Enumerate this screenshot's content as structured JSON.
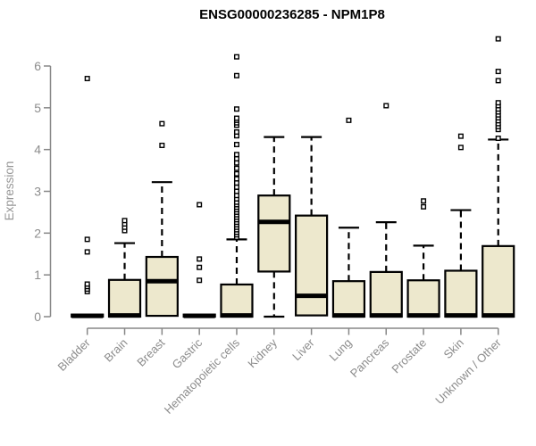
{
  "chart_data": {
    "type": "boxplot",
    "title": "ENSG00000236285 - NPM1P8",
    "ylabel": "Expression",
    "xlabel": "",
    "ylim": [
      0,
      6
    ],
    "yticks": [
      0,
      1,
      2,
      3,
      4,
      5,
      6
    ],
    "grid": false,
    "legend": "none",
    "categories": [
      "Bladder",
      "Brain",
      "Breast",
      "Gastric",
      "Hematopoietic cells",
      "Kidney",
      "Liver",
      "Lung",
      "Pancreas",
      "Prostate",
      "Skin",
      "Unknown / Other"
    ],
    "series": [
      {
        "name": "Bladder",
        "q1": 0,
        "median": 0.02,
        "q3": 0.05,
        "whisker_low": 0,
        "whisker_high": 0.05,
        "outliers": [
          0.6,
          0.66,
          0.72,
          0.78,
          1.55,
          1.85,
          5.7
        ]
      },
      {
        "name": "Brain",
        "q1": 0,
        "median": 0.03,
        "q3": 0.88,
        "whisker_low": 0,
        "whisker_high": 1.76,
        "outliers": [
          2.06,
          2.14,
          2.22,
          2.3
        ]
      },
      {
        "name": "Breast",
        "q1": 0.02,
        "median": 0.85,
        "q3": 1.43,
        "whisker_low": 0,
        "whisker_high": 3.22,
        "outliers": [
          4.1,
          4.62
        ]
      },
      {
        "name": "Gastric",
        "q1": 0,
        "median": 0.02,
        "q3": 0.05,
        "whisker_low": 0,
        "whisker_high": 0.05,
        "outliers": [
          0.87,
          1.18,
          1.38,
          2.68
        ]
      },
      {
        "name": "Hematopoietic cells",
        "q1": 0,
        "median": 0.03,
        "q3": 0.77,
        "whisker_low": 0,
        "whisker_high": 1.85,
        "outliers": [
          1.9,
          1.96,
          2.02,
          2.08,
          2.14,
          2.2,
          2.26,
          2.32,
          2.38,
          2.44,
          2.5,
          2.56,
          2.62,
          2.68,
          2.74,
          2.82,
          2.9,
          3.0,
          3.1,
          3.2,
          3.3,
          3.42,
          3.55,
          3.68,
          3.78,
          3.88,
          4.12,
          4.33,
          4.42,
          4.58,
          4.64,
          4.7,
          4.75,
          4.97,
          5.77,
          6.22
        ]
      },
      {
        "name": "Kidney",
        "q1": 1.08,
        "median": 2.27,
        "q3": 2.9,
        "whisker_low": 0,
        "whisker_high": 4.3,
        "outliers": []
      },
      {
        "name": "Liver",
        "q1": 0.03,
        "median": 0.5,
        "q3": 2.42,
        "whisker_low": 0.03,
        "whisker_high": 4.3,
        "outliers": []
      },
      {
        "name": "Lung",
        "q1": 0,
        "median": 0.03,
        "q3": 0.85,
        "whisker_low": 0,
        "whisker_high": 2.13,
        "outliers": [
          4.7
        ]
      },
      {
        "name": "Pancreas",
        "q1": 0,
        "median": 0.03,
        "q3": 1.07,
        "whisker_low": 0,
        "whisker_high": 2.26,
        "outliers": [
          5.05
        ]
      },
      {
        "name": "Prostate",
        "q1": 0,
        "median": 0.03,
        "q3": 0.87,
        "whisker_low": 0,
        "whisker_high": 1.7,
        "outliers": [
          2.63,
          2.77
        ]
      },
      {
        "name": "Skin",
        "q1": 0,
        "median": 0.03,
        "q3": 1.1,
        "whisker_low": 0,
        "whisker_high": 2.55,
        "outliers": [
          4.05,
          4.32
        ]
      },
      {
        "name": "Unknown / Other",
        "q1": 0,
        "median": 0.03,
        "q3": 1.69,
        "whisker_low": 0,
        "whisker_high": 4.24,
        "outliers": [
          4.27,
          4.48,
          4.55,
          4.62,
          4.69,
          4.76,
          4.83,
          4.9,
          4.97,
          5.05,
          5.12,
          5.65,
          5.87,
          6.65
        ]
      }
    ],
    "colors": {
      "box_fill": "#EDE8CD",
      "box_border": "#000000",
      "median": "#000000",
      "whisker": "#000000",
      "outlier_stroke": "#000000",
      "outlier_fill": "#ffffff",
      "axis_line": "#878787",
      "tick_label": "#8c8c8c",
      "axis_label": "#969696",
      "title": "#000000",
      "background": "#ffffff"
    }
  }
}
